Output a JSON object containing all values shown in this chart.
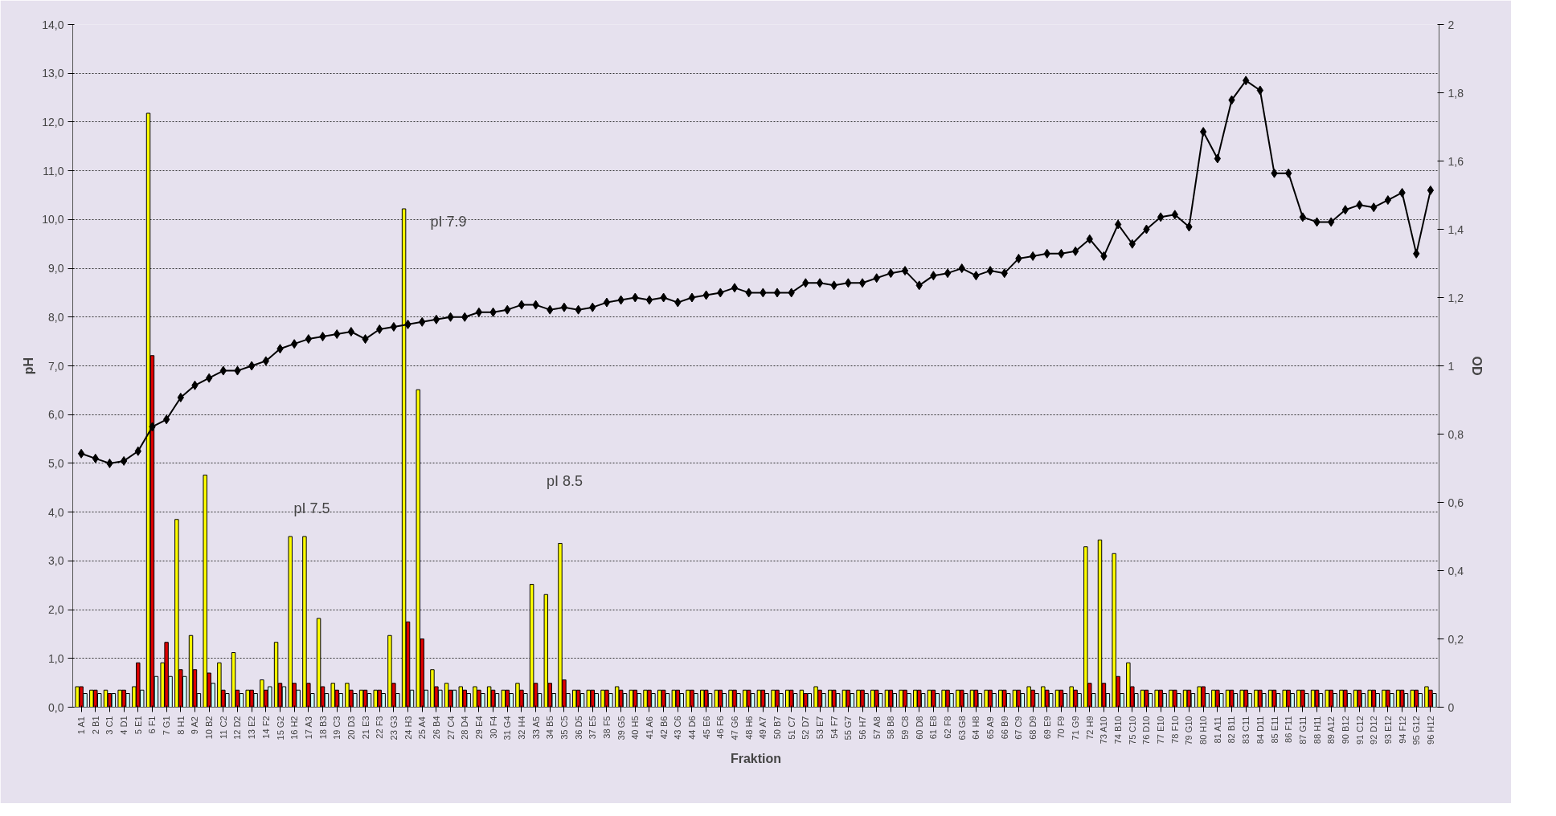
{
  "chart_data": {
    "type": "bar",
    "xlabel": "Fraktion",
    "ylabel": "pH",
    "y2label": "OD",
    "categories": [
      "1 A1",
      "2 B1",
      "3 C1",
      "4 D1",
      "5 E1",
      "6 F1",
      "7 G1",
      "8 H1",
      "9 A2",
      "10 B2",
      "11 C2",
      "12 D2",
      "13 E2",
      "14 F2",
      "15 G2",
      "16 H2",
      "17 A3",
      "18 B3",
      "19 C3",
      "20 D3",
      "21 E3",
      "22 F3",
      "23 G3",
      "24 H3",
      "25 A4",
      "26 B4",
      "27 C4",
      "28 D4",
      "29 E4",
      "30 F4",
      "31 G4",
      "32 H4",
      "33 A5",
      "34 B5",
      "35 C5",
      "36 D5",
      "37 E5",
      "38 F5",
      "39 G5",
      "40 H5",
      "41 A6",
      "42 B6",
      "43 C6",
      "44 D6",
      "45 E6",
      "46 F6",
      "47 G6",
      "48 H6",
      "49 A7",
      "50 B7",
      "51 C7",
      "52 D7",
      "53 E7",
      "54 F7",
      "55 G7",
      "56 H7",
      "57 A8",
      "58 B8",
      "59 C8",
      "60 D8",
      "61 E8",
      "62 F8",
      "63 G8",
      "64 H8",
      "65 A9",
      "66 B9",
      "67 C9",
      "68 D9",
      "69 E9",
      "70 F9",
      "71 G9",
      "72 H9",
      "73 A10",
      "74 B10",
      "75 C10",
      "76 D10",
      "77 E10",
      "78 F10",
      "79 G10",
      "80 H10",
      "81 A11",
      "82 B11",
      "83 C11",
      "84 D11",
      "85 E11",
      "86 F11",
      "87 G11",
      "88 H11",
      "89 A12",
      "90 B12",
      "91 C12",
      "92 D12",
      "93 E12",
      "94 F12",
      "95 G12",
      "96 H12"
    ],
    "series": [
      {
        "axis": "y2",
        "color": "#ffff00",
        "values": [
          0.06,
          0.05,
          0.05,
          0.05,
          0.06,
          1.74,
          0.13,
          0.55,
          0.21,
          0.68,
          0.13,
          0.16,
          0.05,
          0.08,
          0.19,
          0.5,
          0.5,
          0.26,
          0.07,
          0.07,
          0.05,
          0.05,
          0.21,
          1.46,
          0.93,
          0.11,
          0.07,
          0.06,
          0.06,
          0.06,
          0.05,
          0.07,
          0.36,
          0.33,
          0.48,
          0.05,
          0.05,
          0.05,
          0.06,
          0.05,
          0.05,
          0.05,
          0.05,
          0.05,
          0.05,
          0.05,
          0.05,
          0.05,
          0.05,
          0.05,
          0.05,
          0.05,
          0.06,
          0.05,
          0.05,
          0.05,
          0.05,
          0.05,
          0.05,
          0.05,
          0.05,
          0.05,
          0.05,
          0.05,
          0.05,
          0.05,
          0.05,
          0.06,
          0.06,
          0.05,
          0.06,
          0.47,
          0.49,
          0.45,
          0.13,
          0.05,
          0.05,
          0.05,
          0.05,
          0.06,
          0.05,
          0.05,
          0.05,
          0.05,
          0.05,
          0.05,
          0.05,
          0.05,
          0.05,
          0.05,
          0.05,
          0.05,
          0.05,
          0.05,
          0.05,
          0.06
        ]
      },
      {
        "axis": "y2",
        "color": "#dd0000",
        "values": [
          0.06,
          0.05,
          0.04,
          0.05,
          0.13,
          1.03,
          0.19,
          0.11,
          0.11,
          0.1,
          0.05,
          0.05,
          0.05,
          0.05,
          0.07,
          0.07,
          0.07,
          0.06,
          0.05,
          0.05,
          0.05,
          0.05,
          0.07,
          0.25,
          0.2,
          0.06,
          0.05,
          0.05,
          0.05,
          0.05,
          0.05,
          0.05,
          0.07,
          0.07,
          0.08,
          0.05,
          0.05,
          0.05,
          0.05,
          0.05,
          0.05,
          0.05,
          0.05,
          0.05,
          0.05,
          0.05,
          0.05,
          0.05,
          0.05,
          0.05,
          0.05,
          0.04,
          0.05,
          0.05,
          0.05,
          0.05,
          0.05,
          0.05,
          0.05,
          0.05,
          0.05,
          0.05,
          0.05,
          0.05,
          0.05,
          0.05,
          0.05,
          0.05,
          0.05,
          0.05,
          0.05,
          0.07,
          0.07,
          0.09,
          0.06,
          0.05,
          0.05,
          0.05,
          0.05,
          0.06,
          0.05,
          0.05,
          0.05,
          0.05,
          0.05,
          0.05,
          0.05,
          0.05,
          0.05,
          0.05,
          0.05,
          0.05,
          0.05,
          0.05,
          0.05,
          0.05
        ]
      },
      {
        "axis": "y2",
        "color": "#ccffff",
        "values": [
          0.04,
          0.04,
          0.04,
          0.04,
          0.05,
          0.09,
          0.09,
          0.09,
          0.04,
          0.07,
          0.04,
          0.04,
          0.04,
          0.06,
          0.06,
          0.05,
          0.04,
          0.04,
          0.04,
          0.04,
          0.04,
          0.04,
          0.04,
          0.05,
          0.05,
          0.05,
          0.05,
          0.04,
          0.04,
          0.04,
          0.04,
          0.04,
          0.04,
          0.04,
          0.04,
          0.04,
          0.04,
          0.04,
          0.04,
          0.04,
          0.04,
          0.04,
          0.04,
          0.04,
          0.04,
          0.04,
          0.04,
          0.04,
          0.04,
          0.04,
          0.04,
          0.04,
          0.04,
          0.04,
          0.04,
          0.04,
          0.04,
          0.04,
          0.04,
          0.04,
          0.04,
          0.04,
          0.04,
          0.04,
          0.04,
          0.04,
          0.04,
          0.04,
          0.04,
          0.04,
          0.04,
          0.04,
          0.04,
          0.04,
          0.04,
          0.04,
          0.04,
          0.04,
          0.04,
          0.04,
          0.04,
          0.04,
          0.04,
          0.04,
          0.04,
          0.04,
          0.04,
          0.04,
          0.04,
          0.04,
          0.04,
          0.04,
          0.04,
          0.04,
          0.04,
          0.04
        ]
      },
      {
        "type": "line",
        "axis": "y",
        "color": "#000000",
        "marker": "diamond",
        "values": [
          5.2,
          5.1,
          5.0,
          5.05,
          5.25,
          5.75,
          5.9,
          6.35,
          6.6,
          6.75,
          6.9,
          6.9,
          7.0,
          7.1,
          7.35,
          7.45,
          7.55,
          7.6,
          7.65,
          7.7,
          7.55,
          7.75,
          7.8,
          7.85,
          7.9,
          7.95,
          8.0,
          8.0,
          8.1,
          8.1,
          8.15,
          8.25,
          8.25,
          8.15,
          8.2,
          8.15,
          8.2,
          8.3,
          8.35,
          8.4,
          8.35,
          8.4,
          8.3,
          8.4,
          8.45,
          8.5,
          8.6,
          8.5,
          8.5,
          8.5,
          8.5,
          8.7,
          8.7,
          8.65,
          8.7,
          8.7,
          8.8,
          8.9,
          8.95,
          8.65,
          8.85,
          8.9,
          9.0,
          8.85,
          8.95,
          8.9,
          9.2,
          9.25,
          9.3,
          9.3,
          9.35,
          9.6,
          9.25,
          9.9,
          9.5,
          9.8,
          10.05,
          10.1,
          9.85,
          11.8,
          11.25,
          12.45,
          12.85,
          12.65,
          10.95,
          10.95,
          10.05,
          9.95,
          9.95,
          10.2,
          10.3,
          10.25,
          10.4,
          10.55,
          9.3,
          10.6
        ]
      }
    ],
    "ylim": [
      0,
      14
    ],
    "yticks": [
      {
        "value": 0,
        "label": "0,0"
      },
      {
        "value": 1,
        "label": "1,0"
      },
      {
        "value": 2,
        "label": "2,0"
      },
      {
        "value": 3,
        "label": "3,0"
      },
      {
        "value": 4,
        "label": "4,0"
      },
      {
        "value": 5,
        "label": "5,0"
      },
      {
        "value": 6,
        "label": "6,0"
      },
      {
        "value": 7,
        "label": "7,0"
      },
      {
        "value": 8,
        "label": "8,0"
      },
      {
        "value": 9,
        "label": "9,0"
      },
      {
        "value": 10,
        "label": "10,0"
      },
      {
        "value": 11,
        "label": "11,0"
      },
      {
        "value": 12,
        "label": "12,0"
      },
      {
        "value": 13,
        "label": "13,0"
      },
      {
        "value": 14,
        "label": "14,0"
      }
    ],
    "y2lim": [
      0,
      2
    ],
    "y2ticks": [
      0,
      {
        "value": 0.2,
        "label": "0,2"
      },
      {
        "value": 0.4,
        "label": "0,4"
      },
      {
        "value": 0.6,
        "label": "0,6"
      },
      {
        "value": 0.8,
        "label": "0,8"
      },
      1,
      {
        "value": 1.2,
        "label": "1,2"
      },
      {
        "value": 1.4,
        "label": "1,4"
      },
      {
        "value": 1.6,
        "label": "1,6"
      },
      {
        "value": 1.8,
        "label": "1,8"
      },
      2
    ],
    "annotations": [
      "pI 7.5",
      "pI 7.9",
      "pI 8.5"
    ],
    "grid": "y"
  }
}
